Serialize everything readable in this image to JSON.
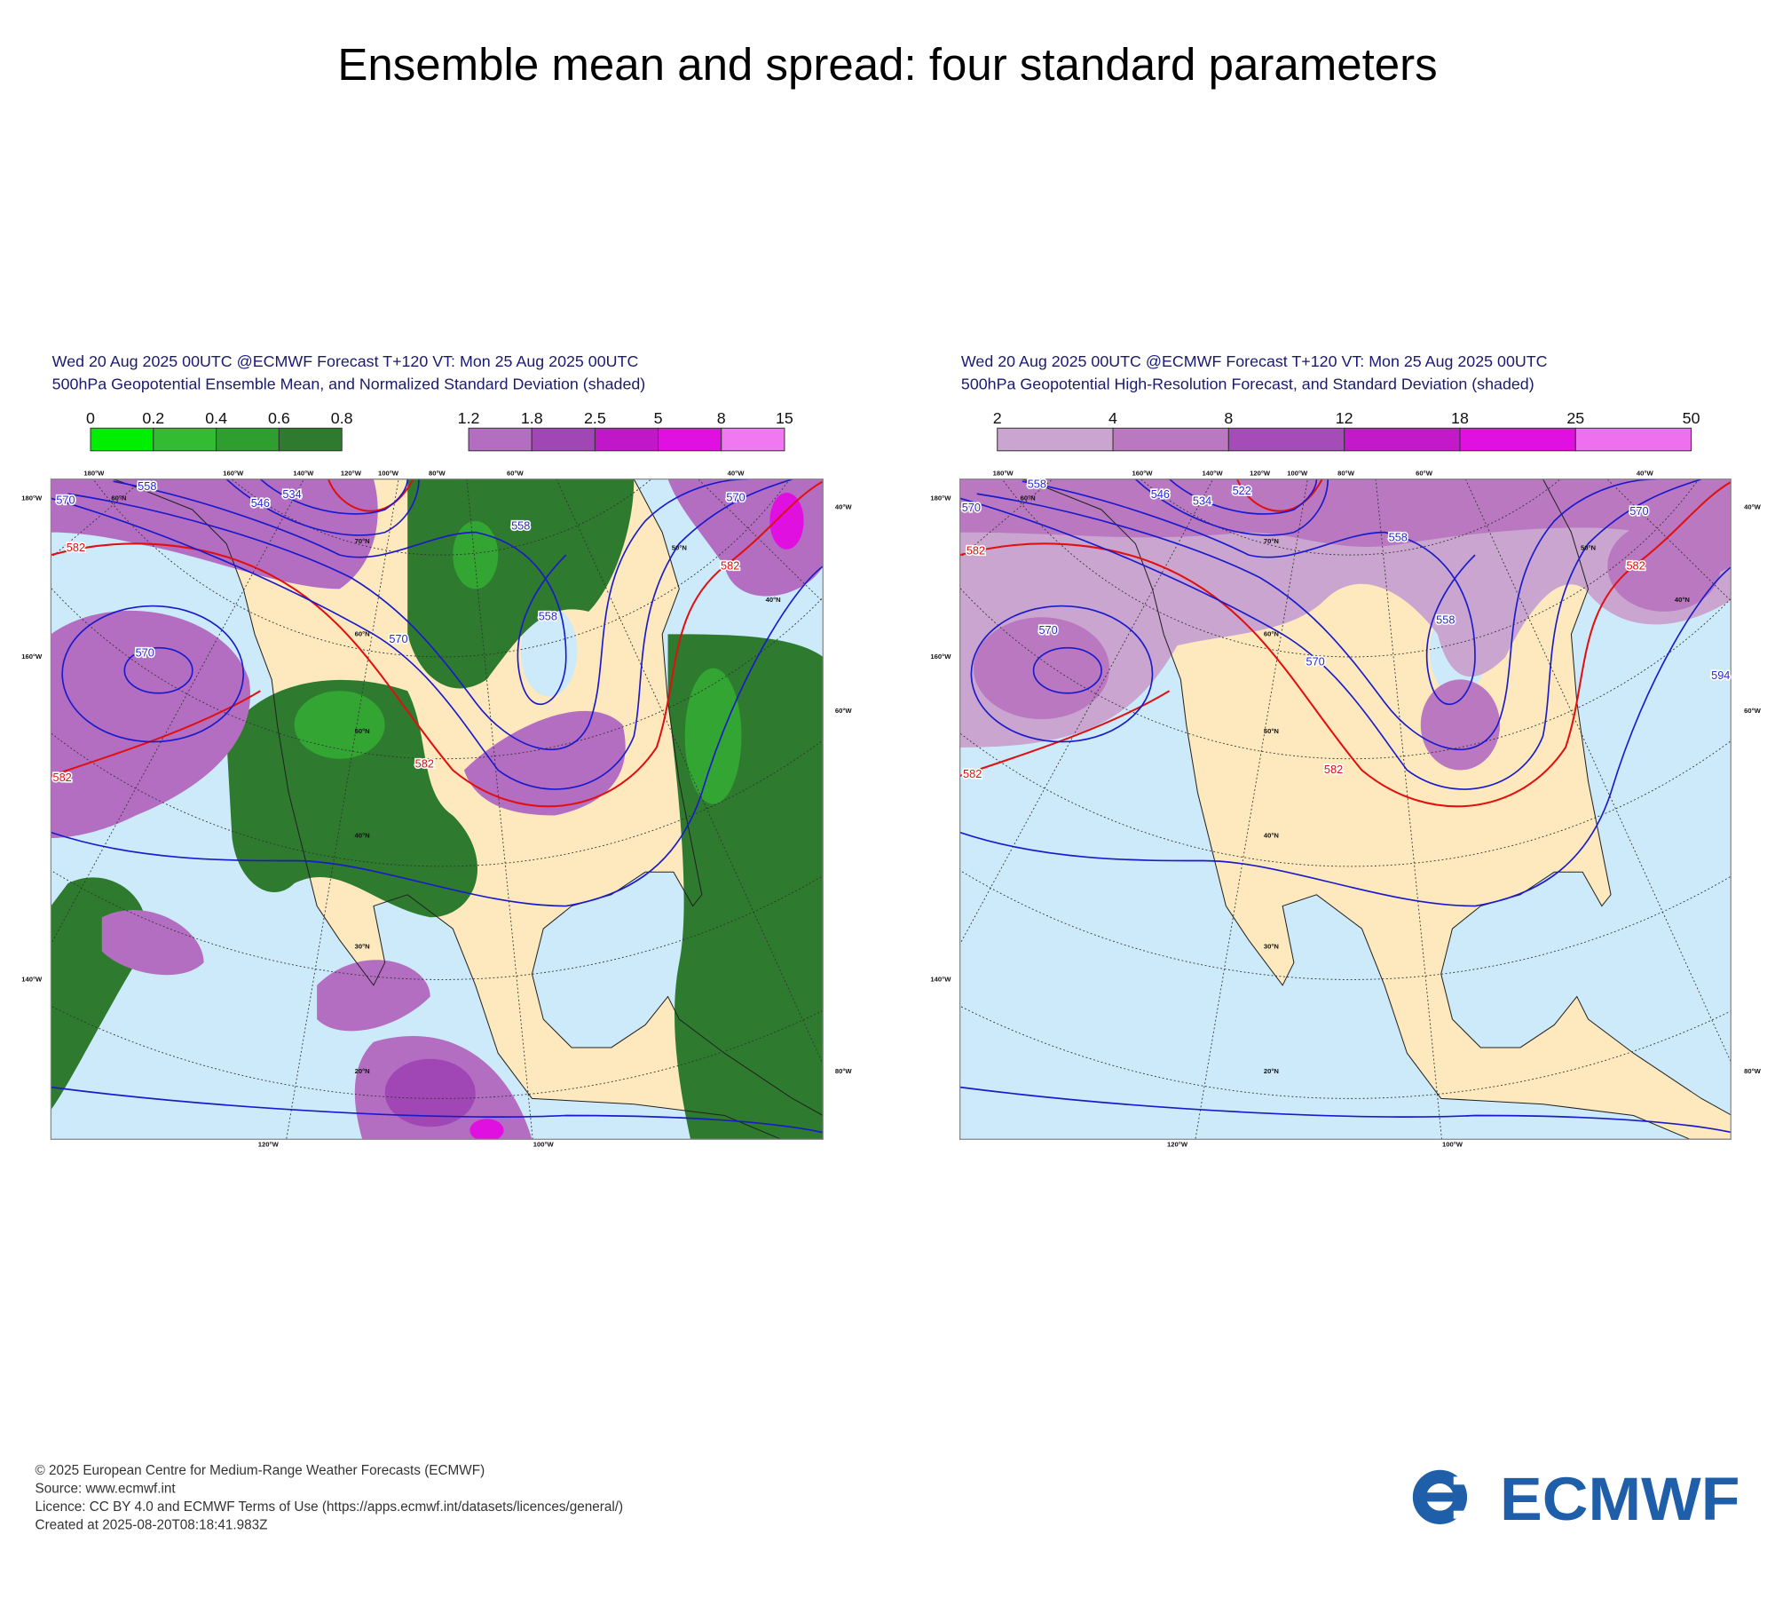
{
  "title": "Ensemble mean and spread: four standard parameters",
  "panels": [
    {
      "header": [
        "Wed 20 Aug 2025 00UTC @ECMWF Forecast T+120 VT: Mon 25 Aug 2025 00UTC",
        "500hPa Geopotential Ensemble Mean, and Normalized Standard Deviation (shaded)"
      ],
      "colorbars": [
        {
          "ticks": [
            0,
            0.2,
            0.4,
            0.6,
            0.8
          ],
          "colors": [
            "#00ee00",
            "#33bb33",
            "#2e9e2e",
            "#2e7a2e"
          ]
        },
        {
          "ticks": [
            1.2,
            1.8,
            2.5,
            5,
            8,
            15
          ],
          "colors": [
            "#b36ec1",
            "#a046b5",
            "#c018c8",
            "#e010e0",
            "#f078f0"
          ]
        }
      ],
      "contour_labels": [
        "558",
        "534",
        "546",
        "570",
        "582",
        "570",
        "582",
        "570",
        "558",
        "582",
        "558",
        "570",
        "582"
      ],
      "map_labels": [
        "180°W",
        "160°W",
        "140°W",
        "120°W",
        "100°W",
        "80°W",
        "60°W",
        "40°W",
        "180°W",
        "160°W",
        "140°W",
        "40°W",
        "60°W",
        "80°W",
        "120°W",
        "100°W",
        "70°N",
        "60°N",
        "50°N",
        "40°N",
        "30°N",
        "20°N",
        "40°N",
        "50°N",
        "60°N"
      ]
    },
    {
      "header": [
        "Wed 20 Aug 2025 00UTC @ECMWF Forecast T+120 VT: Mon 25 Aug 2025 00UTC",
        "500hPa Geopotential High-Resolution Forecast, and Standard Deviation (shaded)"
      ],
      "colorbars": [
        {
          "ticks": [
            2,
            4,
            8,
            12,
            18,
            25,
            50
          ],
          "colors": [
            "#c9a5cf",
            "#b978c0",
            "#a64cb8",
            "#c21ac8",
            "#e010e0",
            "#ee70ee"
          ]
        }
      ],
      "contour_labels": [
        "558",
        "546",
        "534",
        "522",
        "570",
        "582",
        "570",
        "582",
        "570",
        "558",
        "558",
        "582",
        "570",
        "582",
        "594"
      ],
      "map_labels": [
        "180°W",
        "160°W",
        "140°W",
        "120°W",
        "100°W",
        "80°W",
        "60°W",
        "40°W",
        "180°W",
        "160°W",
        "140°W",
        "40°W",
        "60°W",
        "80°W",
        "120°W",
        "100°W",
        "70°N",
        "60°N",
        "50°N",
        "40°N",
        "30°N",
        "20°N",
        "40°N",
        "50°N",
        "60°N"
      ]
    }
  ],
  "footer": [
    "© 2025 European Centre for Medium-Range Weather Forecasts (ECMWF)",
    "Source: www.ecmwf.int",
    "Licence: CC BY 4.0 and ECMWF Terms of Use (https://apps.ecmwf.int/datasets/licences/general/)",
    "Created at 2025-08-20T08:18:41.983Z"
  ],
  "logo": "ECMWF"
}
